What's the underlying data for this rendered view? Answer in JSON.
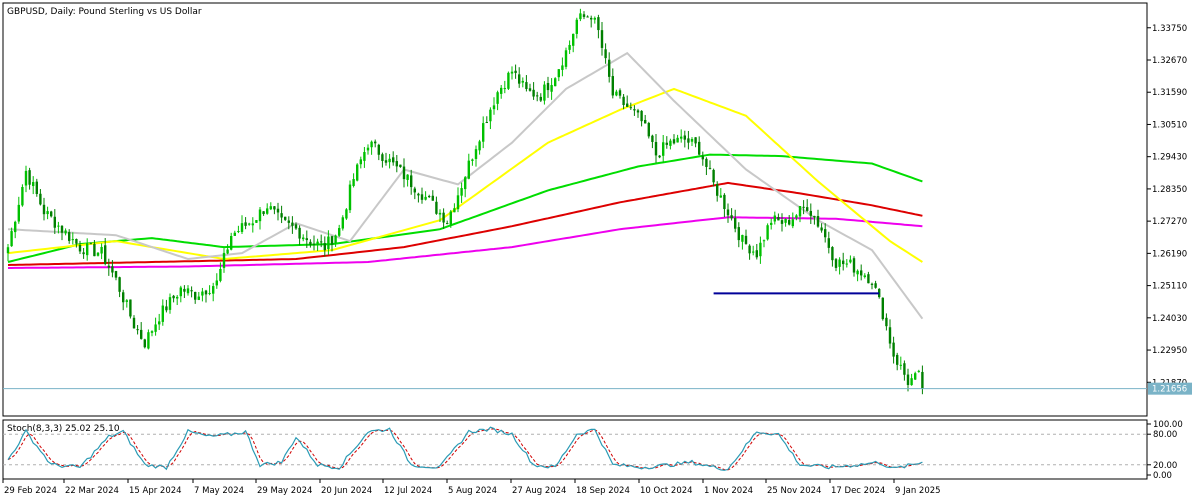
{
  "chart_data": {
    "type": "candlestick",
    "title": "GBPUSD, Daily:  Pound Sterling vs US Dollar",
    "colors": {
      "background": "#ffffff",
      "bull_candle": "#00c000",
      "bear_candle": "#008000",
      "ma_gray": "#c8c8c8",
      "ma_yellow": "#ffff00",
      "ma_green": "#00dd00",
      "ma_red": "#dd0000",
      "ma_magenta": "#ee00ee",
      "support_line": "#000099",
      "price_line": "#7ab3c7",
      "stoch_main": "#2a9bb5",
      "stoch_signal": "#d00000"
    },
    "price_axis": {
      "ylim": [
        1.2074,
        1.3458
      ],
      "ticks": [
        "1.33750",
        "1.32670",
        "1.31590",
        "1.30510",
        "1.29430",
        "1.28350",
        "1.27270",
        "1.26190",
        "1.25110",
        "1.24030",
        "1.22950",
        "1.21870"
      ],
      "current_price_label": "1.21656",
      "current_price": 1.21656
    },
    "date_axis": {
      "ticks": [
        "29 Feb 2024",
        "22 Mar 2024",
        "15 Apr 2024",
        "7 May 2024",
        "29 May 2024",
        "20 Jun 2024",
        "12 Jul 2024",
        "5 Aug 2024",
        "27 Aug 2024",
        "18 Sep 2024",
        "10 Oct 2024",
        "1 Nov 2024",
        "25 Nov 2024",
        "17 Dec 2024",
        "9 Jan 2025"
      ]
    },
    "close_anchors": [
      [
        0,
        1.264
      ],
      [
        5,
        1.2895
      ],
      [
        10,
        1.276
      ],
      [
        15,
        1.27
      ],
      [
        20,
        1.264
      ],
      [
        26,
        1.262
      ],
      [
        30,
        1.253
      ],
      [
        35,
        1.238
      ],
      [
        38,
        1.232
      ],
      [
        42,
        1.241
      ],
      [
        48,
        1.25
      ],
      [
        52,
        1.248
      ],
      [
        58,
        1.252
      ],
      [
        62,
        1.268
      ],
      [
        68,
        1.273
      ],
      [
        72,
        1.278
      ],
      [
        76,
        1.272
      ],
      [
        80,
        1.27
      ],
      [
        84,
        1.266
      ],
      [
        88,
        1.264
      ],
      [
        92,
        1.27
      ],
      [
        96,
        1.287
      ],
      [
        100,
        1.299
      ],
      [
        104,
        1.295
      ],
      [
        110,
        1.288
      ],
      [
        115,
        1.282
      ],
      [
        118,
        1.278
      ],
      [
        122,
        1.273
      ],
      [
        126,
        1.285
      ],
      [
        132,
        1.305
      ],
      [
        136,
        1.316
      ],
      [
        140,
        1.323
      ],
      [
        144,
        1.316
      ],
      [
        148,
        1.315
      ],
      [
        152,
        1.322
      ],
      [
        156,
        1.332
      ],
      [
        158,
        1.34
      ],
      [
        162,
        1.342
      ],
      [
        164,
        1.336
      ],
      [
        168,
        1.315
      ],
      [
        172,
        1.311
      ],
      [
        176,
        1.306
      ],
      [
        180,
        1.295
      ],
      [
        184,
        1.299
      ],
      [
        188,
        1.3
      ],
      [
        192,
        1.297
      ],
      [
        196,
        1.285
      ],
      [
        200,
        1.276
      ],
      [
        204,
        1.266
      ],
      [
        208,
        1.262
      ],
      [
        212,
        1.273
      ],
      [
        216,
        1.272
      ],
      [
        220,
        1.276
      ],
      [
        222,
        1.278
      ],
      [
        226,
        1.27
      ],
      [
        230,
        1.259
      ],
      [
        234,
        1.258
      ],
      [
        238,
        1.255
      ],
      [
        240,
        1.253
      ],
      [
        243,
        1.242
      ],
      [
        246,
        1.228
      ],
      [
        250,
        1.219
      ],
      [
        253,
        1.2205
      ],
      [
        254,
        1.2166
      ]
    ],
    "ma_anchors": {
      "gray": [
        [
          0,
          1.27
        ],
        [
          30,
          1.268
        ],
        [
          50,
          1.26
        ],
        [
          65,
          1.262
        ],
        [
          80,
          1.272
        ],
        [
          95,
          1.266
        ],
        [
          110,
          1.29
        ],
        [
          125,
          1.285
        ],
        [
          140,
          1.299
        ],
        [
          155,
          1.317
        ],
        [
          172,
          1.329
        ],
        [
          185,
          1.313
        ],
        [
          205,
          1.29
        ],
        [
          225,
          1.273
        ],
        [
          240,
          1.263
        ],
        [
          254,
          1.24
        ]
      ],
      "yellow": [
        [
          0,
          1.262
        ],
        [
          30,
          1.266
        ],
        [
          60,
          1.26
        ],
        [
          90,
          1.263
        ],
        [
          120,
          1.273
        ],
        [
          150,
          1.299
        ],
        [
          170,
          1.31
        ],
        [
          185,
          1.317
        ],
        [
          205,
          1.308
        ],
        [
          225,
          1.286
        ],
        [
          245,
          1.266
        ],
        [
          254,
          1.259
        ]
      ],
      "green": [
        [
          0,
          1.259
        ],
        [
          20,
          1.265
        ],
        [
          40,
          1.267
        ],
        [
          60,
          1.264
        ],
        [
          90,
          1.265
        ],
        [
          120,
          1.27
        ],
        [
          150,
          1.283
        ],
        [
          175,
          1.291
        ],
        [
          195,
          1.295
        ],
        [
          215,
          1.2945
        ],
        [
          240,
          1.292
        ],
        [
          254,
          1.286
        ]
      ],
      "red": [
        [
          0,
          1.258
        ],
        [
          40,
          1.259
        ],
        [
          80,
          1.26
        ],
        [
          110,
          1.264
        ],
        [
          140,
          1.271
        ],
        [
          170,
          1.279
        ],
        [
          200,
          1.2855
        ],
        [
          220,
          1.282
        ],
        [
          240,
          1.278
        ],
        [
          254,
          1.2745
        ]
      ],
      "magenta": [
        [
          0,
          1.257
        ],
        [
          50,
          1.2575
        ],
        [
          100,
          1.259
        ],
        [
          140,
          1.264
        ],
        [
          170,
          1.27
        ],
        [
          200,
          1.274
        ],
        [
          230,
          1.2735
        ],
        [
          254,
          1.271
        ]
      ]
    },
    "support_line": {
      "from_index": 196,
      "to_index": 242,
      "price": 1.2485
    },
    "stochastic": {
      "label": "Stoch(8,3,3) 25.02 25.10",
      "main": 25.02,
      "signal": 25.1,
      "levels": [
        80,
        20
      ],
      "axis_labels": [
        "100.00",
        "80.00",
        "20.00",
        "0.00"
      ],
      "anchors": [
        [
          0,
          30
        ],
        [
          5,
          85
        ],
        [
          12,
          20
        ],
        [
          20,
          15
        ],
        [
          28,
          75
        ],
        [
          32,
          85
        ],
        [
          38,
          20
        ],
        [
          44,
          15
        ],
        [
          50,
          85
        ],
        [
          56,
          75
        ],
        [
          62,
          80
        ],
        [
          66,
          85
        ],
        [
          70,
          20
        ],
        [
          76,
          25
        ],
        [
          80,
          75
        ],
        [
          86,
          20
        ],
        [
          92,
          15
        ],
        [
          100,
          85
        ],
        [
          106,
          90
        ],
        [
          112,
          20
        ],
        [
          120,
          15
        ],
        [
          128,
          85
        ],
        [
          134,
          90
        ],
        [
          140,
          80
        ],
        [
          146,
          20
        ],
        [
          152,
          15
        ],
        [
          158,
          80
        ],
        [
          163,
          90
        ],
        [
          168,
          20
        ],
        [
          176,
          15
        ],
        [
          184,
          20
        ],
        [
          190,
          25
        ],
        [
          196,
          15
        ],
        [
          200,
          12
        ],
        [
          208,
          85
        ],
        [
          214,
          80
        ],
        [
          220,
          20
        ],
        [
          228,
          15
        ],
        [
          236,
          20
        ],
        [
          242,
          25
        ],
        [
          246,
          12
        ],
        [
          250,
          18
        ],
        [
          254,
          25
        ]
      ]
    }
  }
}
